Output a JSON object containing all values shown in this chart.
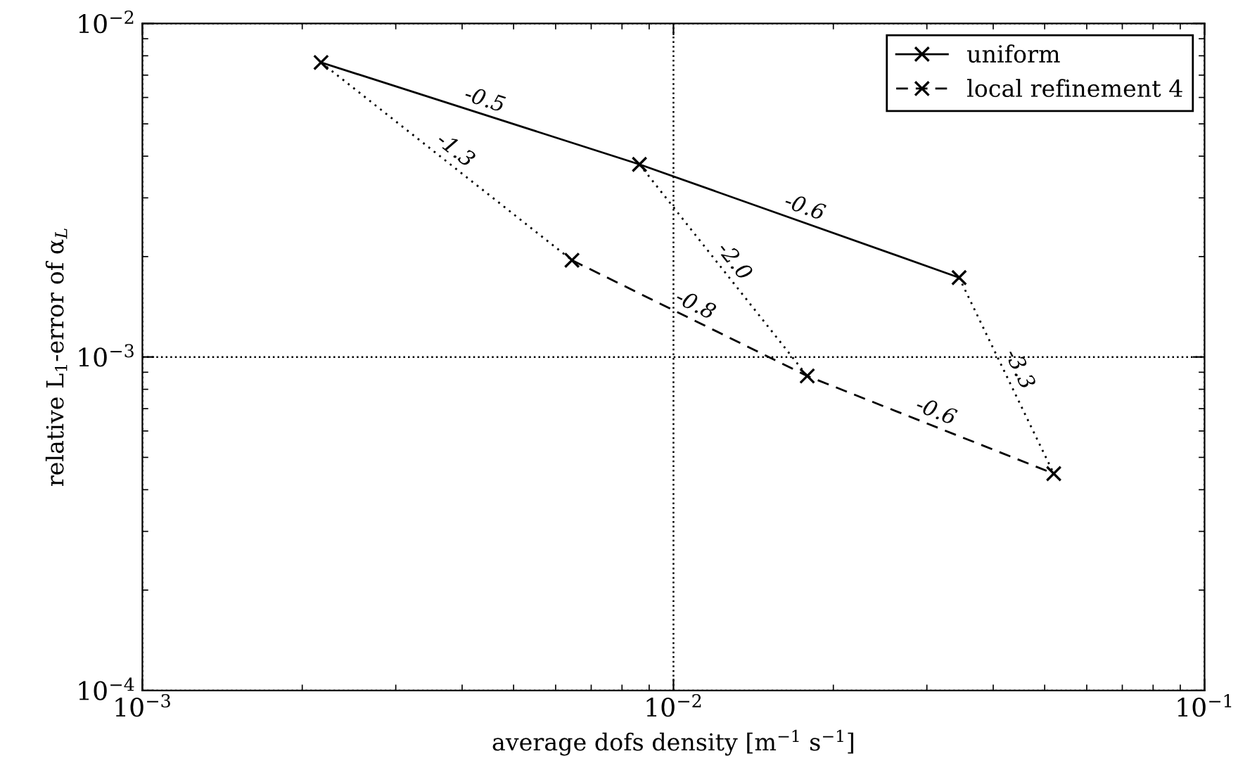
{
  "chart_data": {
    "type": "line",
    "xlabel": "average dofs density [m$^{−1}$ s$^{−1}$]",
    "ylabel": "relative L$_{1}$-error of α$_{L}$",
    "log": "xy",
    "grid": true,
    "legend": "top right",
    "marker": "cross",
    "xlim": [
      0.001,
      0.1
    ],
    "ylim": [
      0.0001,
      0.01
    ],
    "xticks": [
      {
        "value": 0.001,
        "label": "10$^{−3}$"
      },
      {
        "value": 0.01,
        "label": "10$^{−2}$"
      },
      {
        "value": 0.1,
        "label": "10$^{−1}$"
      }
    ],
    "yticks": [
      {
        "value": 0.0001,
        "label": "10$^{−4}$"
      },
      {
        "value": 0.001,
        "label": "10$^{−3}$"
      },
      {
        "value": 0.01,
        "label": "10$^{−2}$"
      }
    ],
    "series": [
      {
        "name": "uniform",
        "color": "#000000",
        "line_style": "solid",
        "x": [
          0.00217,
          0.00863,
          0.0345
        ],
        "values": [
          0.00764,
          0.00378,
          0.00173
        ]
      },
      {
        "name": "local refinement 4",
        "color": "#000000",
        "line_style": "dashed",
        "x": [
          0.00644,
          0.01786,
          0.052
        ],
        "values": [
          0.00195,
          0.000877,
          0.000447
        ]
      },
      {
        "color": "#000000",
        "line_style": "dotted",
        "marker": "none",
        "x": [
          0.00217,
          0.00644
        ],
        "values": [
          0.00764,
          0.00195
        ]
      },
      {
        "color": "#000000",
        "line_style": "dotted",
        "marker": "none",
        "x": [
          0.00863,
          0.01786
        ],
        "values": [
          0.00378,
          0.000877
        ]
      },
      {
        "color": "#000000",
        "line_style": "dotted",
        "marker": "none",
        "x": [
          0.0345,
          0.052
        ],
        "values": [
          0.00173,
          0.000447
        ]
      }
    ],
    "annotations": [
      {
        "text": "-0.5",
        "x": 0.00433,
        "y": 0.00537
      },
      {
        "text": "-1.3",
        "x": 0.00374,
        "y": 0.00386
      },
      {
        "text": "-0.6",
        "x": 0.0173,
        "y": 0.00256
      },
      {
        "text": "-2.0",
        "x": 0.0124,
        "y": 0.00182
      },
      {
        "text": "-0.8",
        "x": 0.0107,
        "y": 0.00131
      },
      {
        "text": "-0.6",
        "x": 0.0305,
        "y": 0.000626
      },
      {
        "text": "-3.3",
        "x": 0.0424,
        "y": 0.00088
      }
    ]
  }
}
